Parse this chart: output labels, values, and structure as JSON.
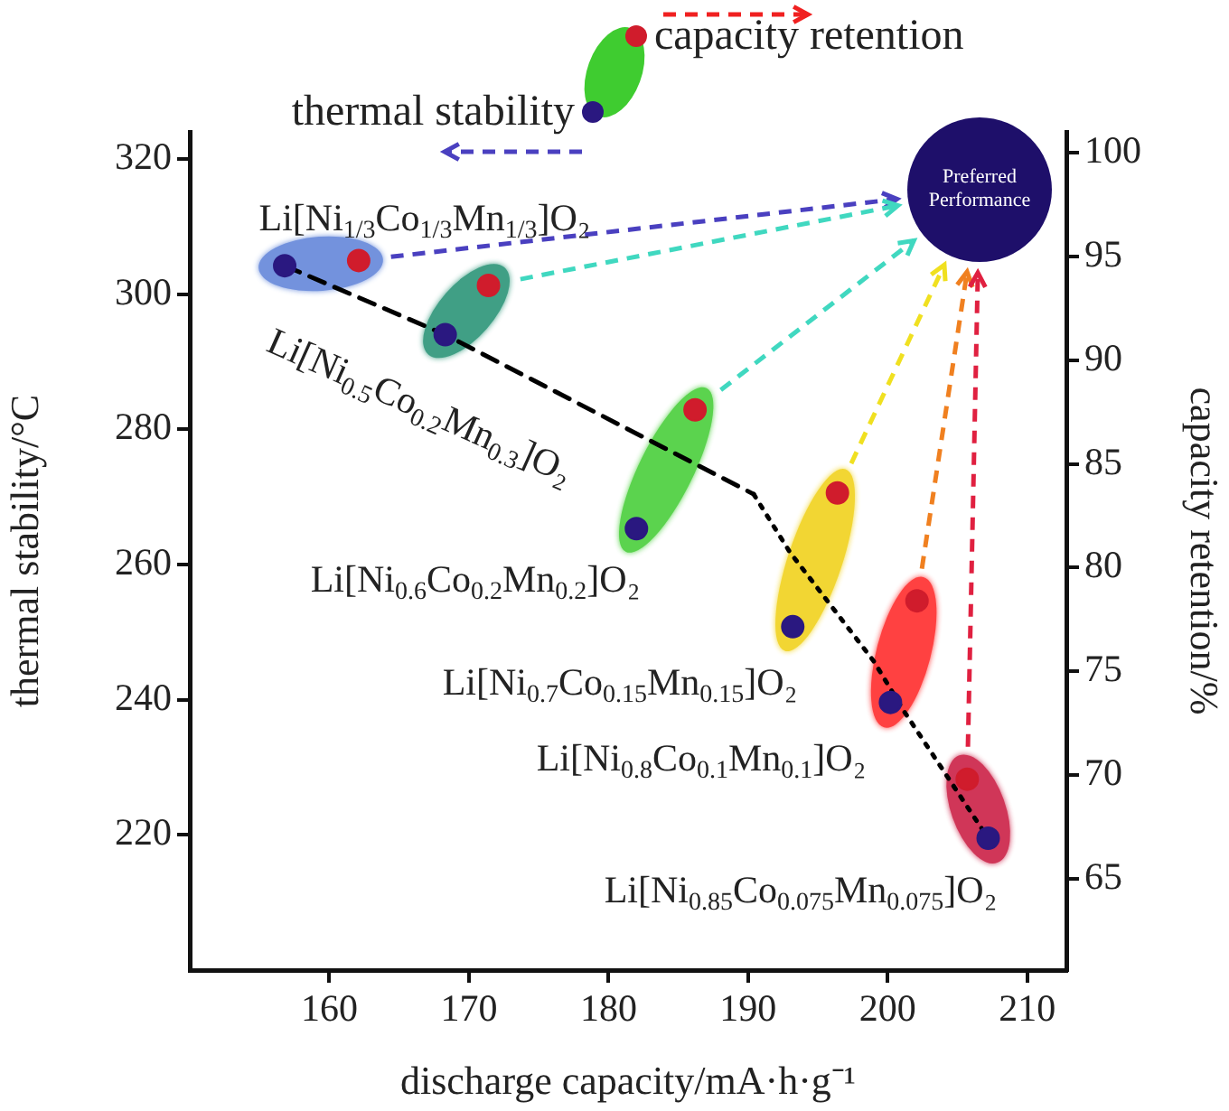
{
  "chart_data": {
    "type": "scatter",
    "xlabel": "discharge capacity/mA·h·g⁻¹",
    "ylabel": "thermal stability/°C",
    "y2label": "capacity retention/%",
    "xlim": [
      150,
      212.8
    ],
    "xticks": [
      160,
      170,
      180,
      190,
      200,
      210
    ],
    "ylim": [
      200,
      324
    ],
    "yticks": [
      220,
      240,
      260,
      280,
      300,
      320
    ],
    "y2lim": [
      60.6,
      101
    ],
    "y2ticks": [
      65,
      70,
      75,
      80,
      85,
      90,
      95,
      100
    ],
    "legend": "top",
    "marker": "circle",
    "series": [
      {
        "name": "thermal stability",
        "color": "#2a1880",
        "x": [
          156.8,
          168.3,
          182.0,
          193.2,
          200.2,
          207.2
        ],
        "values": [
          304.2,
          294.0,
          265.3,
          250.8,
          239.6,
          219.5
        ]
      },
      {
        "name": "capacity retention",
        "color": "#d01c2c",
        "axis": "y2",
        "x": [
          162.1,
          171.4,
          186.2,
          196.4,
          202.1,
          205.7
        ],
        "values": [
          94.8,
          93.6,
          87.6,
          83.6,
          78.4,
          69.8
        ]
      },
      {
        "type": "line",
        "color": "#000000",
        "line_style": "dashed",
        "marker": "none",
        "x": [
          156.8,
          168.3,
          190.4
        ],
        "values": [
          304.2,
          294.0,
          270.4
        ]
      },
      {
        "type": "line",
        "color": "#000000",
        "line_style": "dotted",
        "marker": "none",
        "x": [
          190.4,
          193.0,
          199.0,
          201.2,
          207.2
        ],
        "values": [
          270.4,
          261.8,
          245.7,
          238.2,
          219.5
        ]
      }
    ],
    "annotations": [
      "Li[Ni$_{1/3}$Co$_{1/3}$Mn$_{1/3}$]O₂",
      "Li[Ni$_{0.5}$Co$_{0.2}$Mn$_{0.3}$]O₂",
      "Li[Ni$_{0.6}$Co$_{0.2}$Mn$_{0.2}$]O₂",
      "Li[Ni$_{0.7}$Co$_{0.15}$Mn$_{0.15}$]O₂",
      "Li[Ni$_{0.8}$Co$_{0.1}$Mn$_{0.1}$]O₂",
      "Li[Ni$_{0.85}$Co$_{0.075}$Mn$_{0.075}$]O₂",
      "Preferred Performance"
    ]
  }
}
